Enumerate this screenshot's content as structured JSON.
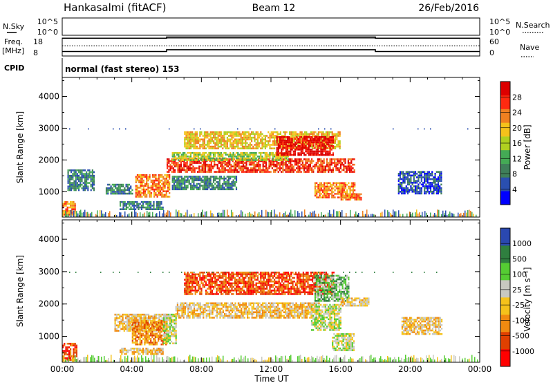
{
  "header": {
    "station": "Hankasalmi (fitACF)",
    "beam": "Beam 12",
    "date": "26/Feb/2016",
    "cpid_label": "CPID",
    "cpid_text": "normal (fast stereo) 153"
  },
  "colors": {
    "power": [
      "#0000ff",
      "#2a4fb0",
      "#3f7f5a",
      "#44aa55",
      "#b0d020",
      "#f5c21b",
      "#f08020",
      "#ff2a10",
      "#dd0000"
    ],
    "velocity_pos": [
      "#2a48b0",
      "#2f7f3f",
      "#55cc33"
    ],
    "velocity_near": "#c8c8c0",
    "velocity_neg": [
      "#f5c21b",
      "#f08a10",
      "#e04000",
      "#ff0000"
    ]
  },
  "chart_data": [
    {
      "type": "line",
      "panel": "nsky-nsearch",
      "left_label": "N.Sky",
      "right_label": "N.Search",
      "left_ticks": [
        "10^5",
        "10^0"
      ],
      "right_ticks": [
        "10^5",
        "10^0"
      ],
      "x": [
        0,
        6,
        18,
        24
      ],
      "series": [
        {
          "values": [
            0.35,
            0.42,
            0.35,
            0.35
          ]
        }
      ]
    },
    {
      "type": "line",
      "panel": "freq-nave",
      "left_label_line1": "Freq.",
      "left_label_line2": "[MHz]",
      "right_label": "Nave",
      "left_ticks": [
        "18",
        "8"
      ],
      "right_ticks": [
        "60",
        "0"
      ],
      "x": [
        0,
        6,
        18,
        24
      ],
      "series": [
        {
          "values": [
            10.5,
            11.5,
            10.5,
            10.5
          ]
        },
        {
          "values": [
            34,
            34,
            34,
            34
          ]
        }
      ]
    },
    {
      "type": "heatmap",
      "panel": "power",
      "ylabel": "Slant Range [km]",
      "yticks": [
        "4000",
        "3000",
        "2000",
        "1000"
      ],
      "ylim": [
        200,
        4600
      ],
      "xlim": [
        0,
        24
      ],
      "colorbar_label": "Power [dB]",
      "colorbar_ticks": [
        "28",
        "24",
        "20",
        "16",
        "12",
        "8",
        "4"
      ],
      "regions": [
        {
          "x0": 6.0,
          "x1": 16.8,
          "r0": 1650,
          "r1": 2050,
          "level": 7
        },
        {
          "x0": 6.3,
          "x1": 13.0,
          "r0": 2000,
          "r1": 2250,
          "level": 4
        },
        {
          "x0": 7.0,
          "x1": 16.0,
          "r0": 2350,
          "r1": 2900,
          "level": 5
        },
        {
          "x0": 12.3,
          "x1": 15.6,
          "r0": 2150,
          "r1": 2750,
          "level": 8
        },
        {
          "x0": 4.2,
          "x1": 6.2,
          "r0": 850,
          "r1": 1550,
          "level": 6
        },
        {
          "x0": 14.5,
          "x1": 16.8,
          "r0": 800,
          "r1": 1300,
          "level": 6
        },
        {
          "x0": 6.3,
          "x1": 10.0,
          "r0": 1100,
          "r1": 1500,
          "level": 2
        },
        {
          "x0": 0.3,
          "x1": 1.8,
          "r0": 1050,
          "r1": 1700,
          "level": 2
        },
        {
          "x0": 2.5,
          "x1": 4.0,
          "r0": 950,
          "r1": 1250,
          "level": 2
        },
        {
          "x0": 16.0,
          "x1": 17.2,
          "r0": 750,
          "r1": 950,
          "level": 6
        },
        {
          "x0": 19.3,
          "x1": 21.8,
          "r0": 950,
          "r1": 1650,
          "level": 1
        },
        {
          "x0": 0.0,
          "x1": 0.7,
          "r0": 250,
          "r1": 700,
          "level": 6
        },
        {
          "x0": 3.3,
          "x1": 5.8,
          "r0": 450,
          "r1": 700,
          "level": 2
        }
      ]
    },
    {
      "type": "heatmap",
      "panel": "velocity",
      "ylabel": "Slant Range [km]",
      "yticks": [
        "4000",
        "3000",
        "2000",
        "1000"
      ],
      "ylim": [
        200,
        4600
      ],
      "xlim": [
        0,
        24
      ],
      "xlabel": "Time UT",
      "xticks": [
        "00:00",
        "04:00",
        "08:00",
        "12:00",
        "16:00",
        "20:00",
        "00:00"
      ],
      "colorbar_label": "Velocity [m s⁻¹]",
      "colorbar_ticks": [
        "1000",
        "500",
        "100",
        "25",
        "-25",
        "-100",
        "-500",
        "-1000"
      ],
      "regions": [
        {
          "x0": 6.5,
          "x1": 14.8,
          "r0": 1600,
          "r1": 2050,
          "level": 4
        },
        {
          "x0": 3.0,
          "x1": 6.0,
          "r0": 1150,
          "r1": 1700,
          "level": 4
        },
        {
          "x0": 7.0,
          "x1": 15.6,
          "r0": 2300,
          "r1": 3000,
          "level": 6
        },
        {
          "x0": 14.5,
          "x1": 16.5,
          "r0": 2100,
          "r1": 2900,
          "level": 2
        },
        {
          "x0": 4.0,
          "x1": 6.0,
          "r0": 750,
          "r1": 1500,
          "level": 5
        },
        {
          "x0": 5.8,
          "x1": 6.5,
          "r0": 800,
          "r1": 1700,
          "level": 3
        },
        {
          "x0": 14.3,
          "x1": 16.0,
          "r0": 1200,
          "r1": 2000,
          "level": 3
        },
        {
          "x0": 15.5,
          "x1": 16.8,
          "r0": 600,
          "r1": 1100,
          "level": 3
        },
        {
          "x0": 0.0,
          "x1": 0.8,
          "r0": 250,
          "r1": 800,
          "level": 6
        },
        {
          "x0": 3.3,
          "x1": 5.8,
          "r0": 450,
          "r1": 650,
          "level": 4
        },
        {
          "x0": 19.5,
          "x1": 21.8,
          "r0": 1050,
          "r1": 1600,
          "level": 4
        },
        {
          "x0": 16.0,
          "x1": 17.6,
          "r0": 1950,
          "r1": 2200,
          "level": 4
        }
      ]
    }
  ]
}
